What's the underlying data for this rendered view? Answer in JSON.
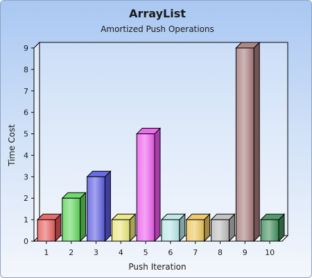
{
  "chart_data": {
    "type": "bar",
    "title": "ArrayList",
    "subtitle": "Amortized Push Operations",
    "xlabel": "Push Iteration",
    "ylabel": "Time Cost",
    "categories": [
      "1",
      "2",
      "3",
      "4",
      "5",
      "6",
      "7",
      "8",
      "9",
      "10"
    ],
    "values": [
      1,
      2,
      3,
      1,
      5,
      1,
      1,
      1,
      9,
      1
    ],
    "ylim": [
      0,
      9
    ],
    "yticks": [
      "0",
      "1",
      "2",
      "3",
      "4",
      "5",
      "6",
      "7",
      "8",
      "9"
    ],
    "grid": false,
    "legend": "none",
    "style": "3d",
    "bar_colors": [
      "#e65a5a",
      "#5fd65a",
      "#5a5ae0",
      "#ece67a",
      "#ec5aec",
      "#b8e6e8",
      "#ecc45a",
      "#bcbcbc",
      "#a67a7a",
      "#3f8f5a"
    ]
  }
}
